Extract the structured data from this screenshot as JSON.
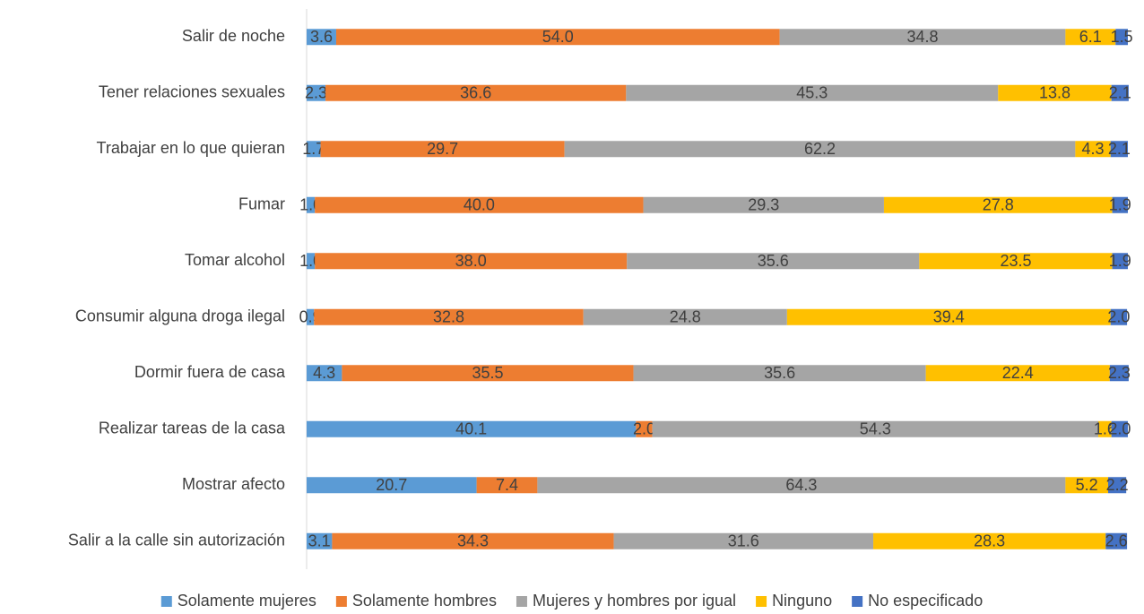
{
  "chart_data": {
    "type": "stacked_barh",
    "categories": [
      "Salir de noche",
      "Tener relaciones sexuales",
      "Trabajar en lo que quieran",
      "Fumar",
      "Tomar alcohol",
      "Consumir alguna droga ilegal",
      "Dormir fuera de casa",
      "Realizar tareas de la casa",
      "Mostrar afecto",
      "Salir a la calle sin autorización"
    ],
    "xlim": [
      0,
      100
    ],
    "legend": "bottom",
    "series": [
      {
        "name": "Solamente mujeres",
        "color": "#5b9bd5",
        "values": [
          3.6,
          2.3,
          1.7,
          1.0,
          1.0,
          0.9,
          4.3,
          40.1,
          20.7,
          3.1
        ],
        "value_labels": [
          "3.6",
          "2.3",
          "1.7",
          "1.0",
          "1.0",
          "0.9",
          "4.3",
          "40.1",
          "20.7",
          "3.1"
        ]
      },
      {
        "name": "Solamente hombres",
        "color": "#ed7d31",
        "values": [
          54.0,
          36.6,
          29.7,
          40.0,
          38.0,
          32.8,
          35.5,
          2.0,
          7.4,
          34.3
        ],
        "value_labels": [
          "54.0",
          "36.6",
          "29.7",
          "40.0",
          "38.0",
          "32.8",
          "35.5",
          "2.0",
          "7.4",
          "34.3"
        ]
      },
      {
        "name": "Mujeres y hombres por igual",
        "color": "#a5a5a5",
        "values": [
          34.8,
          45.3,
          62.2,
          29.3,
          35.6,
          24.8,
          35.6,
          54.3,
          64.3,
          31.6
        ],
        "value_labels": [
          "34.8",
          "45.3",
          "62.2",
          "29.3",
          "35.6",
          "24.8",
          "35.6",
          "54.3",
          "64.3",
          "31.6"
        ]
      },
      {
        "name": "Ninguno",
        "color": "#ffc000",
        "values": [
          6.1,
          13.8,
          4.3,
          27.8,
          23.5,
          39.4,
          22.4,
          1.6,
          5.2,
          28.3
        ],
        "value_labels": [
          "6.1",
          "13.8",
          "4.3",
          "27.8",
          "23.5",
          "39.4",
          "22.4",
          "1.6",
          "5.2",
          "28.3"
        ]
      },
      {
        "name": "No especificado",
        "color": "#4472c4",
        "values": [
          1.5,
          2.1,
          2.1,
          1.9,
          1.9,
          2.0,
          2.3,
          2.0,
          2.2,
          2.6
        ],
        "value_labels": [
          "1.5",
          "2.1",
          "2.1",
          "1.9",
          "1.9",
          "2.0",
          "2.3",
          "2.0",
          "2.2",
          "2.6"
        ]
      }
    ]
  }
}
